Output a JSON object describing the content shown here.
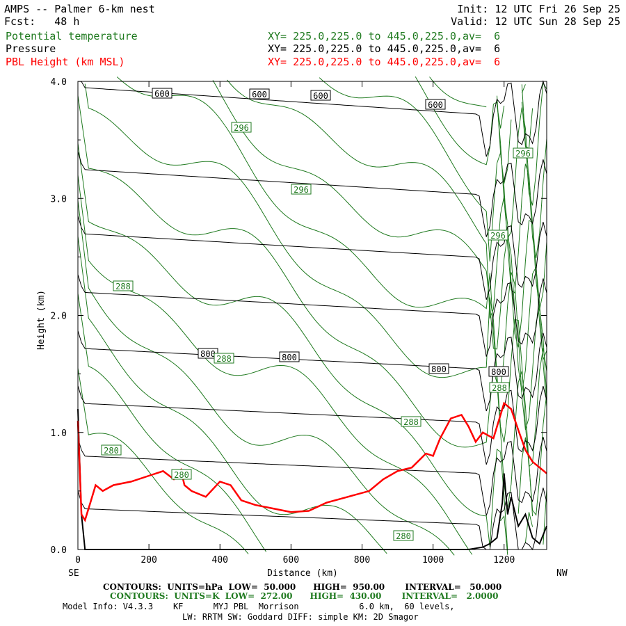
{
  "header": {
    "title": "AMPS -- Palmer 6-km nest",
    "fcst": "Fcst:   48 h",
    "init": "Init: 12 UTC Fri 26 Sep 25",
    "valid": "Valid: 12 UTC Sun 28 Sep 25",
    "fields": [
      {
        "name": "Potential temperature",
        "xy": "XY= 225.0,225.0 to 445.0,225.0,av=  6",
        "color": "#1f7a1f"
      },
      {
        "name": "Pressure",
        "xy": "XY= 225.0,225.0 to 445.0,225.0,av=  6",
        "color": "#000000"
      },
      {
        "name": "PBL Height (km MSL)",
        "xy": "XY= 225.0,225.0 to 445.0,225.0,av=  6",
        "color": "#ff0000"
      }
    ]
  },
  "chart_data": {
    "type": "line",
    "title": "",
    "xlabel": "Distance (km)",
    "ylabel": "Height (km)",
    "xlim": [
      0,
      1320
    ],
    "ylim": [
      0,
      4.0
    ],
    "x_ticks": [
      "0",
      "200",
      "400",
      "600",
      "800",
      "1000",
      "1200"
    ],
    "y_ticks": [
      "0.0",
      "1.0",
      "2.0",
      "3.0",
      "4.0"
    ],
    "x_end_labels": {
      "left": "SE",
      "right": "NW"
    },
    "pressure_labels": [
      "600",
      "600",
      "600",
      "600",
      "800",
      "800",
      "800",
      "800"
    ],
    "theta_labels": [
      "296",
      "296",
      "296",
      "296",
      "288",
      "288",
      "288",
      "288",
      "280",
      "280",
      "280"
    ],
    "pbl_height": {
      "name": "PBL Height (km MSL)",
      "color": "#ff0000",
      "x": [
        0,
        10,
        20,
        35,
        50,
        70,
        100,
        150,
        200,
        240,
        270,
        290,
        300,
        320,
        360,
        400,
        430,
        460,
        500,
        550,
        600,
        650,
        700,
        760,
        820,
        860,
        900,
        940,
        980,
        1000,
        1020,
        1050,
        1080,
        1100,
        1120,
        1140,
        1170,
        1190,
        1200,
        1220,
        1240,
        1260,
        1280,
        1300,
        1320
      ],
      "y": [
        1.1,
        0.3,
        0.25,
        0.4,
        0.55,
        0.5,
        0.55,
        0.58,
        0.63,
        0.67,
        0.6,
        0.68,
        0.55,
        0.5,
        0.45,
        0.58,
        0.55,
        0.42,
        0.38,
        0.35,
        0.32,
        0.33,
        0.4,
        0.45,
        0.5,
        0.6,
        0.67,
        0.7,
        0.82,
        0.8,
        0.95,
        1.12,
        1.15,
        1.05,
        0.92,
        1.0,
        0.95,
        1.15,
        1.25,
        1.2,
        1.02,
        0.85,
        0.75,
        0.7,
        0.65
      ]
    },
    "terrain": {
      "color": "#000000",
      "x": [
        0,
        10,
        20,
        30,
        40,
        60,
        100,
        400,
        800,
        1000,
        1100,
        1140,
        1160,
        1180,
        1195,
        1200,
        1210,
        1220,
        1240,
        1260,
        1280,
        1300,
        1320
      ],
      "y": [
        1.2,
        0.3,
        0.0,
        0.0,
        0.0,
        0.0,
        0.0,
        0.0,
        0.0,
        0.0,
        0.0,
        0.02,
        0.05,
        0.1,
        0.4,
        0.65,
        0.3,
        0.45,
        0.2,
        0.3,
        0.1,
        0.05,
        0.2
      ]
    }
  },
  "footer": {
    "line1": "CONTOURS:  UNITS=hPa  LOW=  50.000      HIGH=  950.00       INTERVAL=   50.000",
    "line2": "CONTOURS:  UNITS=K  LOW=  272.00      HIGH=  430.00       INTERVAL=   2.0000",
    "line3": "Model Info: V4.3.3    KF      MYJ PBL  Morrison            6.0 km,  60 levels,",
    "line4": "LW: RRTM SW: Goddard DIFF: simple KM: 2D Smagor"
  }
}
